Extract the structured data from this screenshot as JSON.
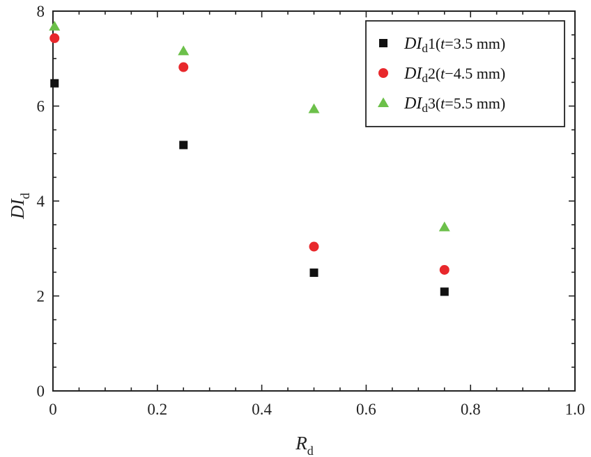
{
  "chart_data": {
    "type": "scatter",
    "xlim": [
      0,
      1.0
    ],
    "ylim": [
      0,
      8
    ],
    "x_ticks": [
      "0",
      "0.2",
      "0.4",
      "0.6",
      "0.8",
      "1.0"
    ],
    "y_ticks": [
      "0",
      "2",
      "4",
      "6",
      "8"
    ],
    "xlabel": {
      "main": "R",
      "sub": "d"
    },
    "ylabel": {
      "main": "DI",
      "sub": "d"
    },
    "legend_position": "top-right",
    "grid": false,
    "series": [
      {
        "legend": {
          "base": "DI",
          "sub": "d",
          "index": "1",
          "open": "(",
          "var": "t",
          "rest": "=3.5 mm)"
        },
        "marker": "square",
        "color": "#111111",
        "points": [
          {
            "x": 0.003,
            "y": 6.48
          },
          {
            "x": 0.25,
            "y": 5.18
          },
          {
            "x": 0.5,
            "y": 2.49
          },
          {
            "x": 0.75,
            "y": 2.09
          }
        ]
      },
      {
        "legend": {
          "base": "DI",
          "sub": "d",
          "index": "2",
          "open": "(",
          "var": "t",
          "rest": "−4.5 mm)"
        },
        "marker": "circle",
        "color": "#e8282c",
        "points": [
          {
            "x": 0.003,
            "y": 7.43
          },
          {
            "x": 0.25,
            "y": 6.82
          },
          {
            "x": 0.5,
            "y": 3.04
          },
          {
            "x": 0.75,
            "y": 2.55
          }
        ]
      },
      {
        "legend": {
          "base": "DI",
          "sub": "d",
          "index": "3",
          "open": "(",
          "var": "t",
          "rest": "=5.5 mm)"
        },
        "marker": "triangle",
        "color": "#6cc04a",
        "points": [
          {
            "x": 0.003,
            "y": 7.68
          },
          {
            "x": 0.25,
            "y": 7.16
          },
          {
            "x": 0.5,
            "y": 5.94
          },
          {
            "x": 0.75,
            "y": 3.45
          }
        ]
      }
    ]
  }
}
